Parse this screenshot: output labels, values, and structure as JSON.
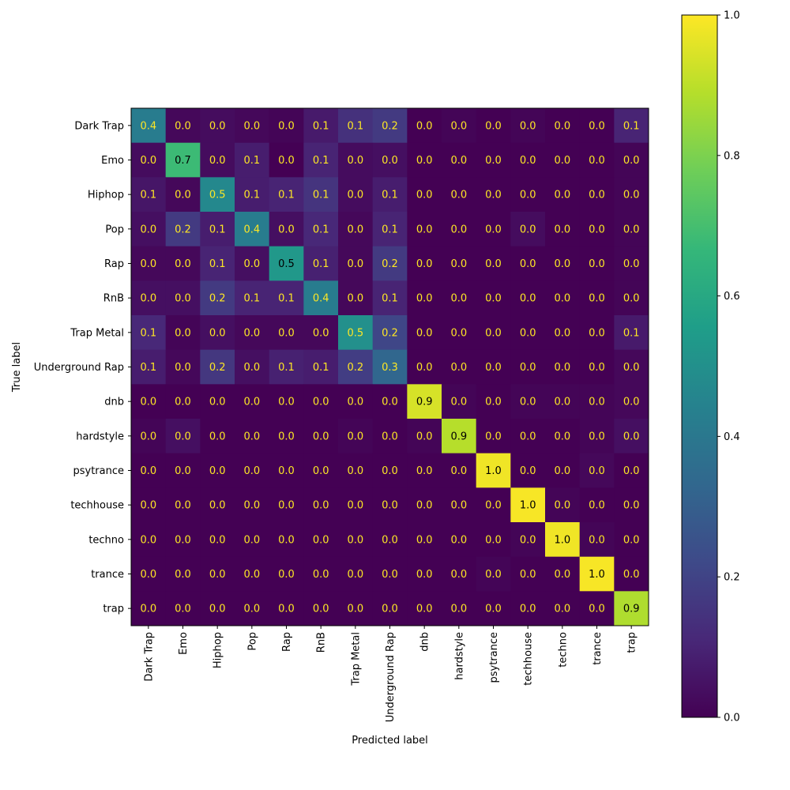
{
  "chart_data": {
    "type": "heatmap",
    "title": "",
    "xlabel": "Predicted label",
    "ylabel": "True label",
    "x_categories": [
      "Dark Trap",
      "Emo",
      "Hiphop",
      "Pop",
      "Rap",
      "RnB",
      "Trap Metal",
      "Underground Rap",
      "dnb",
      "hardstyle",
      "psytrance",
      "techhouse",
      "techno",
      "trance",
      "trap"
    ],
    "y_categories": [
      "Dark Trap",
      "Emo",
      "Hiphop",
      "Pop",
      "Rap",
      "RnB",
      "Trap Metal",
      "Underground Rap",
      "dnb",
      "hardstyle",
      "psytrance",
      "techhouse",
      "techno",
      "trance",
      "trap"
    ],
    "values": [
      [
        0.42,
        0.02,
        0.03,
        0.02,
        0.01,
        0.07,
        0.14,
        0.17,
        0.0,
        0.01,
        0.0,
        0.01,
        0.0,
        0.0,
        0.1
      ],
      [
        0.03,
        0.68,
        0.03,
        0.08,
        0.0,
        0.1,
        0.03,
        0.04,
        0.0,
        0.0,
        0.0,
        0.0,
        0.0,
        0.0,
        0.01
      ],
      [
        0.06,
        0.02,
        0.47,
        0.08,
        0.1,
        0.15,
        0.03,
        0.08,
        0.0,
        0.0,
        0.0,
        0.0,
        0.0,
        0.0,
        0.01
      ],
      [
        0.04,
        0.17,
        0.08,
        0.42,
        0.04,
        0.11,
        0.02,
        0.1,
        0.0,
        0.0,
        0.0,
        0.03,
        0.0,
        0.0,
        0.01
      ],
      [
        0.02,
        0.02,
        0.1,
        0.04,
        0.53,
        0.09,
        0.02,
        0.17,
        0.0,
        0.0,
        0.0,
        0.0,
        0.0,
        0.0,
        0.01
      ],
      [
        0.04,
        0.04,
        0.17,
        0.1,
        0.1,
        0.42,
        0.02,
        0.1,
        0.0,
        0.0,
        0.0,
        0.0,
        0.0,
        0.0,
        0.01
      ],
      [
        0.11,
        0.01,
        0.04,
        0.02,
        0.02,
        0.02,
        0.5,
        0.21,
        0.0,
        0.0,
        0.0,
        0.0,
        0.0,
        0.0,
        0.07
      ],
      [
        0.08,
        0.02,
        0.16,
        0.04,
        0.09,
        0.08,
        0.18,
        0.33,
        0.0,
        0.0,
        0.0,
        0.0,
        0.0,
        0.0,
        0.02
      ],
      [
        0.0,
        0.0,
        0.0,
        0.0,
        0.0,
        0.0,
        0.0,
        0.0,
        0.94,
        0.01,
        0.0,
        0.01,
        0.01,
        0.01,
        0.02
      ],
      [
        0.01,
        0.04,
        0.0,
        0.0,
        0.0,
        0.0,
        0.01,
        0.0,
        0.01,
        0.89,
        0.0,
        0.0,
        0.0,
        0.01,
        0.04
      ],
      [
        0.0,
        0.0,
        0.0,
        0.0,
        0.0,
        0.0,
        0.0,
        0.0,
        0.0,
        0.0,
        0.98,
        0.0,
        0.0,
        0.02,
        0.0
      ],
      [
        0.0,
        0.0,
        0.0,
        0.0,
        0.0,
        0.0,
        0.0,
        0.0,
        0.0,
        0.0,
        0.0,
        0.99,
        0.01,
        0.0,
        0.0
      ],
      [
        0.0,
        0.0,
        0.0,
        0.0,
        0.0,
        0.0,
        0.0,
        0.0,
        0.0,
        0.0,
        0.0,
        0.01,
        0.98,
        0.01,
        0.0
      ],
      [
        0.0,
        0.0,
        0.0,
        0.0,
        0.0,
        0.0,
        0.0,
        0.0,
        0.0,
        0.0,
        0.01,
        0.0,
        0.0,
        0.99,
        0.0
      ],
      [
        0.0,
        0.0,
        0.0,
        0.0,
        0.0,
        0.0,
        0.0,
        0.0,
        0.0,
        0.0,
        0.0,
        0.0,
        0.0,
        0.0,
        0.88
      ]
    ],
    "value_format": "one decimal",
    "colormap": "viridis",
    "color_range": [
      0.0,
      1.0
    ],
    "colorbar_ticks": [
      "0.0",
      "0.2",
      "0.4",
      "0.6",
      "0.8",
      "1.0"
    ],
    "colors": {
      "text_on_dark": "#fde725",
      "text_on_light": "#000000",
      "axis": "#000000"
    }
  }
}
